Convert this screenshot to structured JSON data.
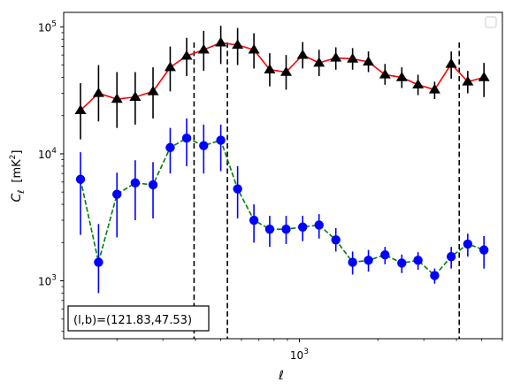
{
  "chart_data": {
    "type": "scatter",
    "title": "",
    "xlabel": "ℓ",
    "ylabel": "C_ℓ [mK²]",
    "ylabel_parts": {
      "sym": "C",
      "sub": "ℓ",
      "unit": "[mK",
      "sup": "2",
      "close": "]"
    },
    "xscale": "log",
    "yscale": "log",
    "xlim": [
      125,
      6000
    ],
    "ylim": [
      350,
      130000
    ],
    "x_tick_labels": [
      {
        "value": 1000,
        "base": "10",
        "exp": "3"
      }
    ],
    "y_tick_labels": [
      {
        "value": 1000,
        "base": "10",
        "exp": "3"
      },
      {
        "value": 10000,
        "base": "10",
        "exp": "4"
      },
      {
        "value": 100000,
        "base": "10",
        "exp": "5"
      }
    ],
    "legend": "top-right (empty)",
    "vlines": [
      395,
      530,
      4100
    ],
    "annotation": "(l,b)=(121.83,47.53)",
    "series": [
      {
        "color": "#ff0000",
        "marker": "triangle",
        "marker_color": "#000000",
        "errorbar_color": "#000000",
        "linestyle": "solid",
        "x": [
          145,
          170,
          200,
          235,
          275,
          320,
          370,
          430,
          500,
          580,
          670,
          770,
          890,
          1030,
          1190,
          1380,
          1600,
          1840,
          2130,
          2470,
          2850,
          3300,
          3820,
          4420,
          5100
        ],
        "y": [
          22000,
          30000,
          27000,
          28000,
          31000,
          48000,
          59000,
          66000,
          75000,
          72000,
          66000,
          46000,
          44000,
          60000,
          52000,
          57000,
          56000,
          53000,
          42000,
          40000,
          35000,
          32000,
          51000,
          37000,
          40000
        ],
        "y_err_low": [
          9000,
          12000,
          11000,
          11000,
          12000,
          17000,
          18000,
          21000,
          24000,
          22000,
          19000,
          12000,
          12000,
          13000,
          11000,
          11000,
          10000,
          9000,
          7000,
          7000,
          6000,
          5000,
          12000,
          7000,
          12000
        ],
        "y_err_high": [
          14000,
          20000,
          17000,
          16000,
          17000,
          22000,
          23000,
          27000,
          27000,
          26000,
          23000,
          16000,
          16000,
          16000,
          14000,
          12000,
          12000,
          11000,
          9000,
          8000,
          7000,
          5000,
          13000,
          8000,
          12000
        ]
      },
      {
        "color": "#008000",
        "marker": "circle",
        "marker_color": "#0000ff",
        "errorbar_color": "#0000ff",
        "linestyle": "dashed",
        "x": [
          145,
          170,
          200,
          235,
          275,
          320,
          370,
          430,
          500,
          580,
          670,
          770,
          890,
          1030,
          1190,
          1380,
          1600,
          1840,
          2130,
          2470,
          2850,
          3300,
          3820,
          4420,
          5100
        ],
        "y": [
          6300,
          1400,
          4800,
          5900,
          5700,
          11200,
          13300,
          11600,
          12800,
          5300,
          3000,
          2550,
          2550,
          2650,
          2750,
          2100,
          1400,
          1450,
          1600,
          1380,
          1450,
          1100,
          1550,
          1950,
          1750
        ],
        "y_err_low": [
          4000,
          600,
          2600,
          2900,
          2600,
          4200,
          5300,
          4600,
          5500,
          2200,
          1000,
          700,
          600,
          600,
          600,
          400,
          280,
          270,
          250,
          230,
          230,
          150,
          300,
          400,
          500
        ],
        "y_err_high": [
          4000,
          1400,
          2300,
          3000,
          2900,
          4800,
          5700,
          5400,
          4200,
          2700,
          1000,
          700,
          700,
          600,
          600,
          500,
          300,
          300,
          250,
          230,
          230,
          150,
          300,
          400,
          500
        ]
      }
    ]
  }
}
